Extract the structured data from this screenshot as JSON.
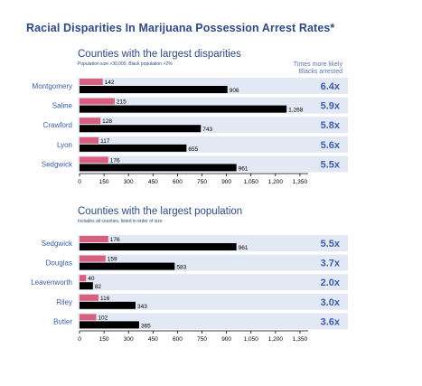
{
  "title": "Racial Disparities In Marijuana Possession Arrest Rates*",
  "ratio_header": [
    "Times more likely",
    "Blacks arrested"
  ],
  "colors": {
    "title": "#2f4a85",
    "label": "#3b5ca8",
    "row_band": "#e3e8f5",
    "pink_bar": "#d95f7e",
    "black_bar": "#000000"
  },
  "chart_data": [
    {
      "type": "bar",
      "title": "Counties with the largest disparities",
      "subtitle": "Population size >30,000, Black population >2%",
      "categories": [
        "Montgomery",
        "Saline",
        "Crawford",
        "Lyon",
        "Sedgwick"
      ],
      "series": [
        {
          "color": "#d95f7e",
          "values": [
            142,
            215,
            128,
            117,
            176
          ]
        },
        {
          "color": "#000000",
          "values": [
            906,
            1268,
            743,
            655,
            961
          ]
        }
      ],
      "value_labels": {
        "pink": [
          "142",
          "215",
          "128",
          "117",
          "176"
        ],
        "black": [
          "906",
          "1,268",
          "743",
          "655",
          "961"
        ]
      },
      "ratios": [
        "6.4x",
        "5.9x",
        "5.8x",
        "5.6x",
        "5.5x"
      ],
      "xlim": [
        0,
        1400
      ],
      "xticks": [
        0,
        150,
        300,
        450,
        600,
        750,
        900,
        1050,
        1200,
        1350
      ],
      "xtick_labels": [
        "0",
        "150",
        "300",
        "450",
        "600",
        "750",
        "900",
        "1,050",
        "1,200",
        "1,350"
      ]
    },
    {
      "type": "bar",
      "title": "Counties with the largest population",
      "subtitle": "Includes all counties, listed in order of size",
      "categories": [
        "Sedgwick",
        "Douglas",
        "Leavenworth",
        "Riley",
        "Butler"
      ],
      "series": [
        {
          "color": "#d95f7e",
          "values": [
            176,
            159,
            40,
            116,
            102
          ]
        },
        {
          "color": "#000000",
          "values": [
            961,
            583,
            82,
            343,
            365
          ]
        }
      ],
      "value_labels": {
        "pink": [
          "176",
          "159",
          "40",
          "116",
          "102"
        ],
        "black": [
          "961",
          "583",
          "82",
          "343",
          "365"
        ]
      },
      "ratios": [
        "5.5x",
        "3.7x",
        "2.0x",
        "3.0x",
        "3.6x"
      ],
      "xlim": [
        0,
        1400
      ],
      "xticks": [
        0,
        150,
        300,
        450,
        600,
        750,
        900,
        1050,
        1200,
        1350
      ],
      "xtick_labels": [
        "0",
        "150",
        "300",
        "450",
        "600",
        "750",
        "900",
        "1,050",
        "1,200",
        "1,350"
      ]
    }
  ]
}
